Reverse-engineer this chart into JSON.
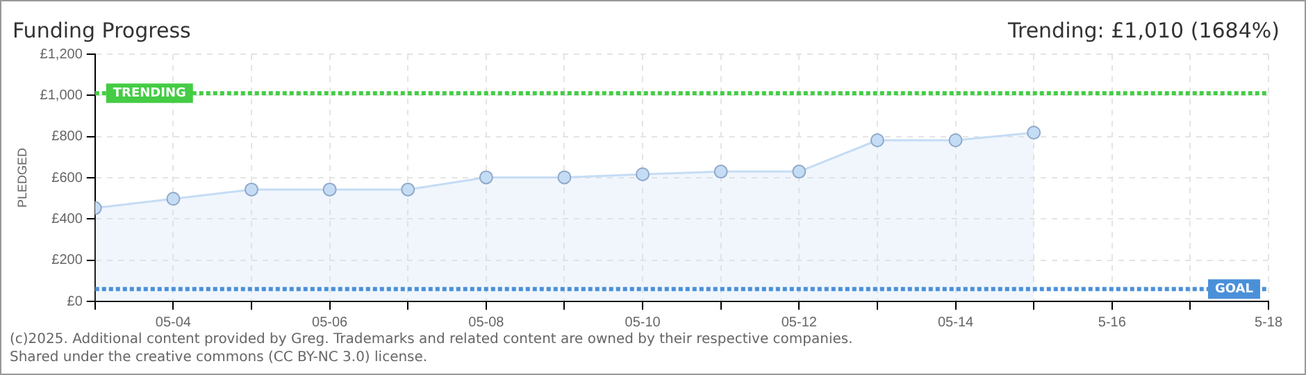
{
  "chart_data": {
    "type": "area",
    "title": "Funding Progress",
    "subtitle": "Trending: £1,010 (1684%)",
    "ylabel": "PLEDGED",
    "x": [
      "--05-03",
      "--05-04",
      "--05-05",
      "--05-06",
      "--05-07",
      "--05-08",
      "--05-09",
      "--05-10",
      "--05-11",
      "--05-12",
      "--05-13",
      "--05-14",
      "--05-15"
    ],
    "series": [
      {
        "color": "#c5dcf5",
        "values": [
          453,
          498,
          543,
          543,
          543,
          602,
          602,
          617,
          630,
          630,
          782,
          782,
          819
        ]
      }
    ],
    "xlim": [
      "--05-03",
      "--05-18"
    ],
    "xticks": [
      {
        "value": "--05-03",
        "label": null
      },
      {
        "value": "--05-04",
        "label": "05-04"
      },
      {
        "value": "--05-05",
        "label": null
      },
      {
        "value": "--05-06",
        "label": "05-06"
      },
      {
        "value": "--05-07",
        "label": null
      },
      {
        "value": "--05-08",
        "label": "05-08"
      },
      {
        "value": "--05-09",
        "label": null
      },
      {
        "value": "--05-10",
        "label": "05-10"
      },
      {
        "value": "--05-11",
        "label": null
      },
      {
        "value": "--05-12",
        "label": "05-12"
      },
      {
        "value": "--05-13",
        "label": null
      },
      {
        "value": "--05-14",
        "label": "05-14"
      },
      {
        "value": "--05-15",
        "label": null
      },
      {
        "value": "--05-16",
        "label": "5-16"
      },
      {
        "value": "--05-17",
        "label": null
      },
      {
        "value": "--05-18",
        "label": "5-18"
      }
    ],
    "ylim": [
      0,
      1200
    ],
    "yticks": [
      {
        "value": 0,
        "label": "£0"
      },
      {
        "value": 200,
        "label": "£200"
      },
      {
        "value": 400,
        "label": "£400"
      },
      {
        "value": 600,
        "label": "£600"
      },
      {
        "value": 800,
        "label": "£800"
      },
      {
        "value": 1000,
        "label": "£1,000"
      },
      {
        "value": 1200,
        "label": "£1,200"
      }
    ],
    "grid": true,
    "marker": "circle",
    "legend": false,
    "ref_lines": [
      {
        "axis": "y",
        "value": 1010,
        "label": "TRENDING",
        "color": "#44cc44",
        "line_style": "dotted"
      },
      {
        "axis": "y",
        "value": 60,
        "label": "GOAL",
        "color": "#4a90d9",
        "line_style": "dotted"
      }
    ],
    "annotations": [
      "(c)2025. Additional content provided by Greg. Trademarks and related content are owned by their respective companies.",
      "Shared under the creative commons (CC BY-NC 3.0) license."
    ]
  }
}
